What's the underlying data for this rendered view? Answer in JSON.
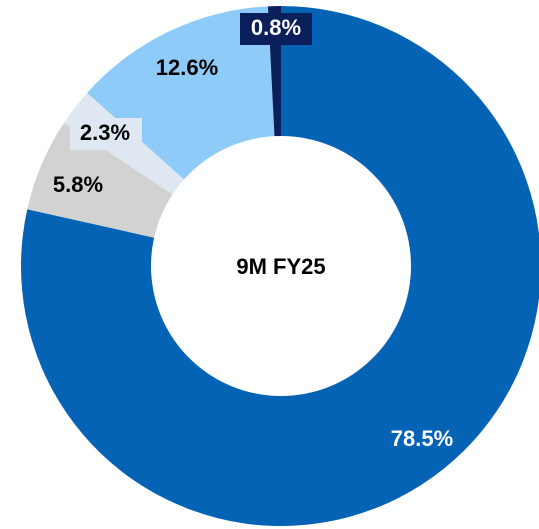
{
  "chart_data": {
    "type": "donut",
    "center_text": "9M FY25",
    "categories": [
      null,
      null,
      null,
      null,
      null
    ],
    "values": [
      78.5,
      5.8,
      2.3,
      12.6,
      0.8
    ],
    "value_labels": [
      "78.5%",
      "5.8%",
      "2.3%",
      "12.6%",
      "0.8%"
    ],
    "colors": [
      "#0563b5",
      "#d2d2d2",
      "#dfe7f3",
      "#8ecbf8",
      "#0b1f5a"
    ]
  }
}
